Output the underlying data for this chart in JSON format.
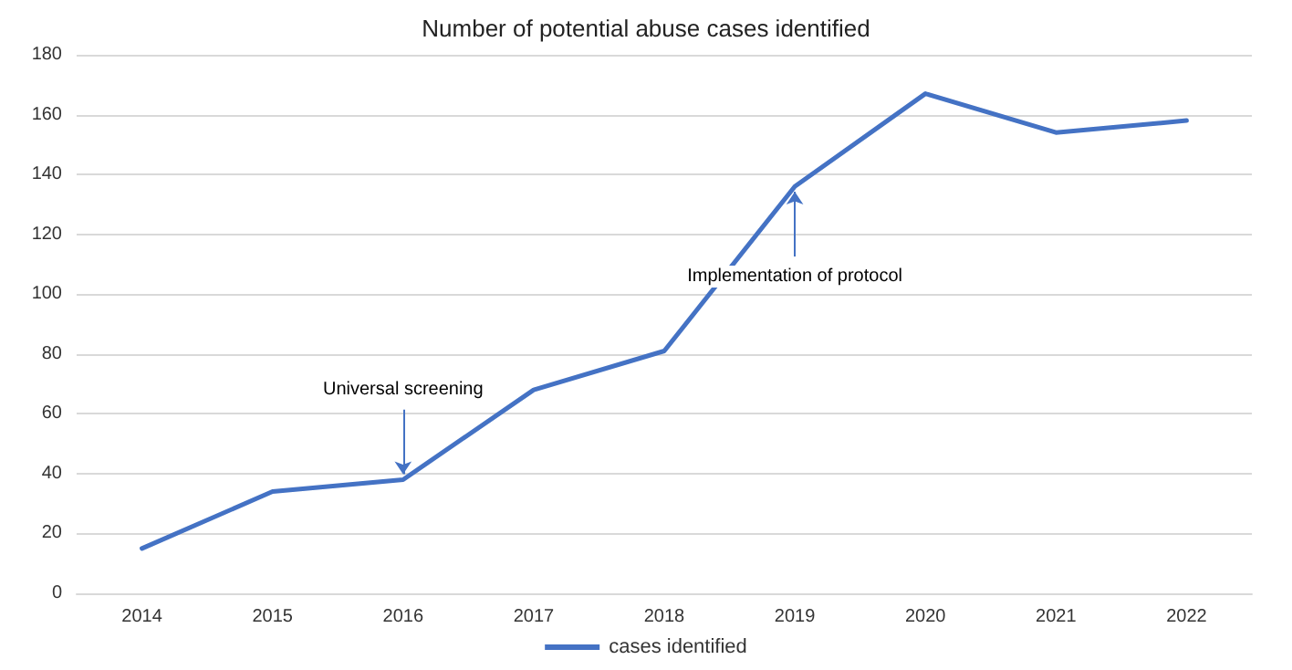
{
  "chart_data": {
    "type": "line",
    "title": "Number of potential abuse cases identified",
    "categories": [
      "2014",
      "2015",
      "2016",
      "2017",
      "2018",
      "2019",
      "2020",
      "2021",
      "2022"
    ],
    "series": [
      {
        "name": "cases identified",
        "color": "#4472c4",
        "values": [
          15,
          34,
          38,
          68,
          81,
          136,
          167,
          154,
          158
        ]
      }
    ],
    "ylim": [
      0,
      180
    ],
    "yticks": [
      0,
      20,
      40,
      60,
      80,
      100,
      120,
      140,
      160,
      180
    ],
    "grid": "y",
    "legend": "bottom",
    "marker": "none",
    "line_style": "solid",
    "annotations": [
      {
        "text": "Universal screening",
        "x": "2016",
        "y": 38
      },
      {
        "text": "Implementation of protocol",
        "x": "2019",
        "y": 136
      }
    ]
  }
}
